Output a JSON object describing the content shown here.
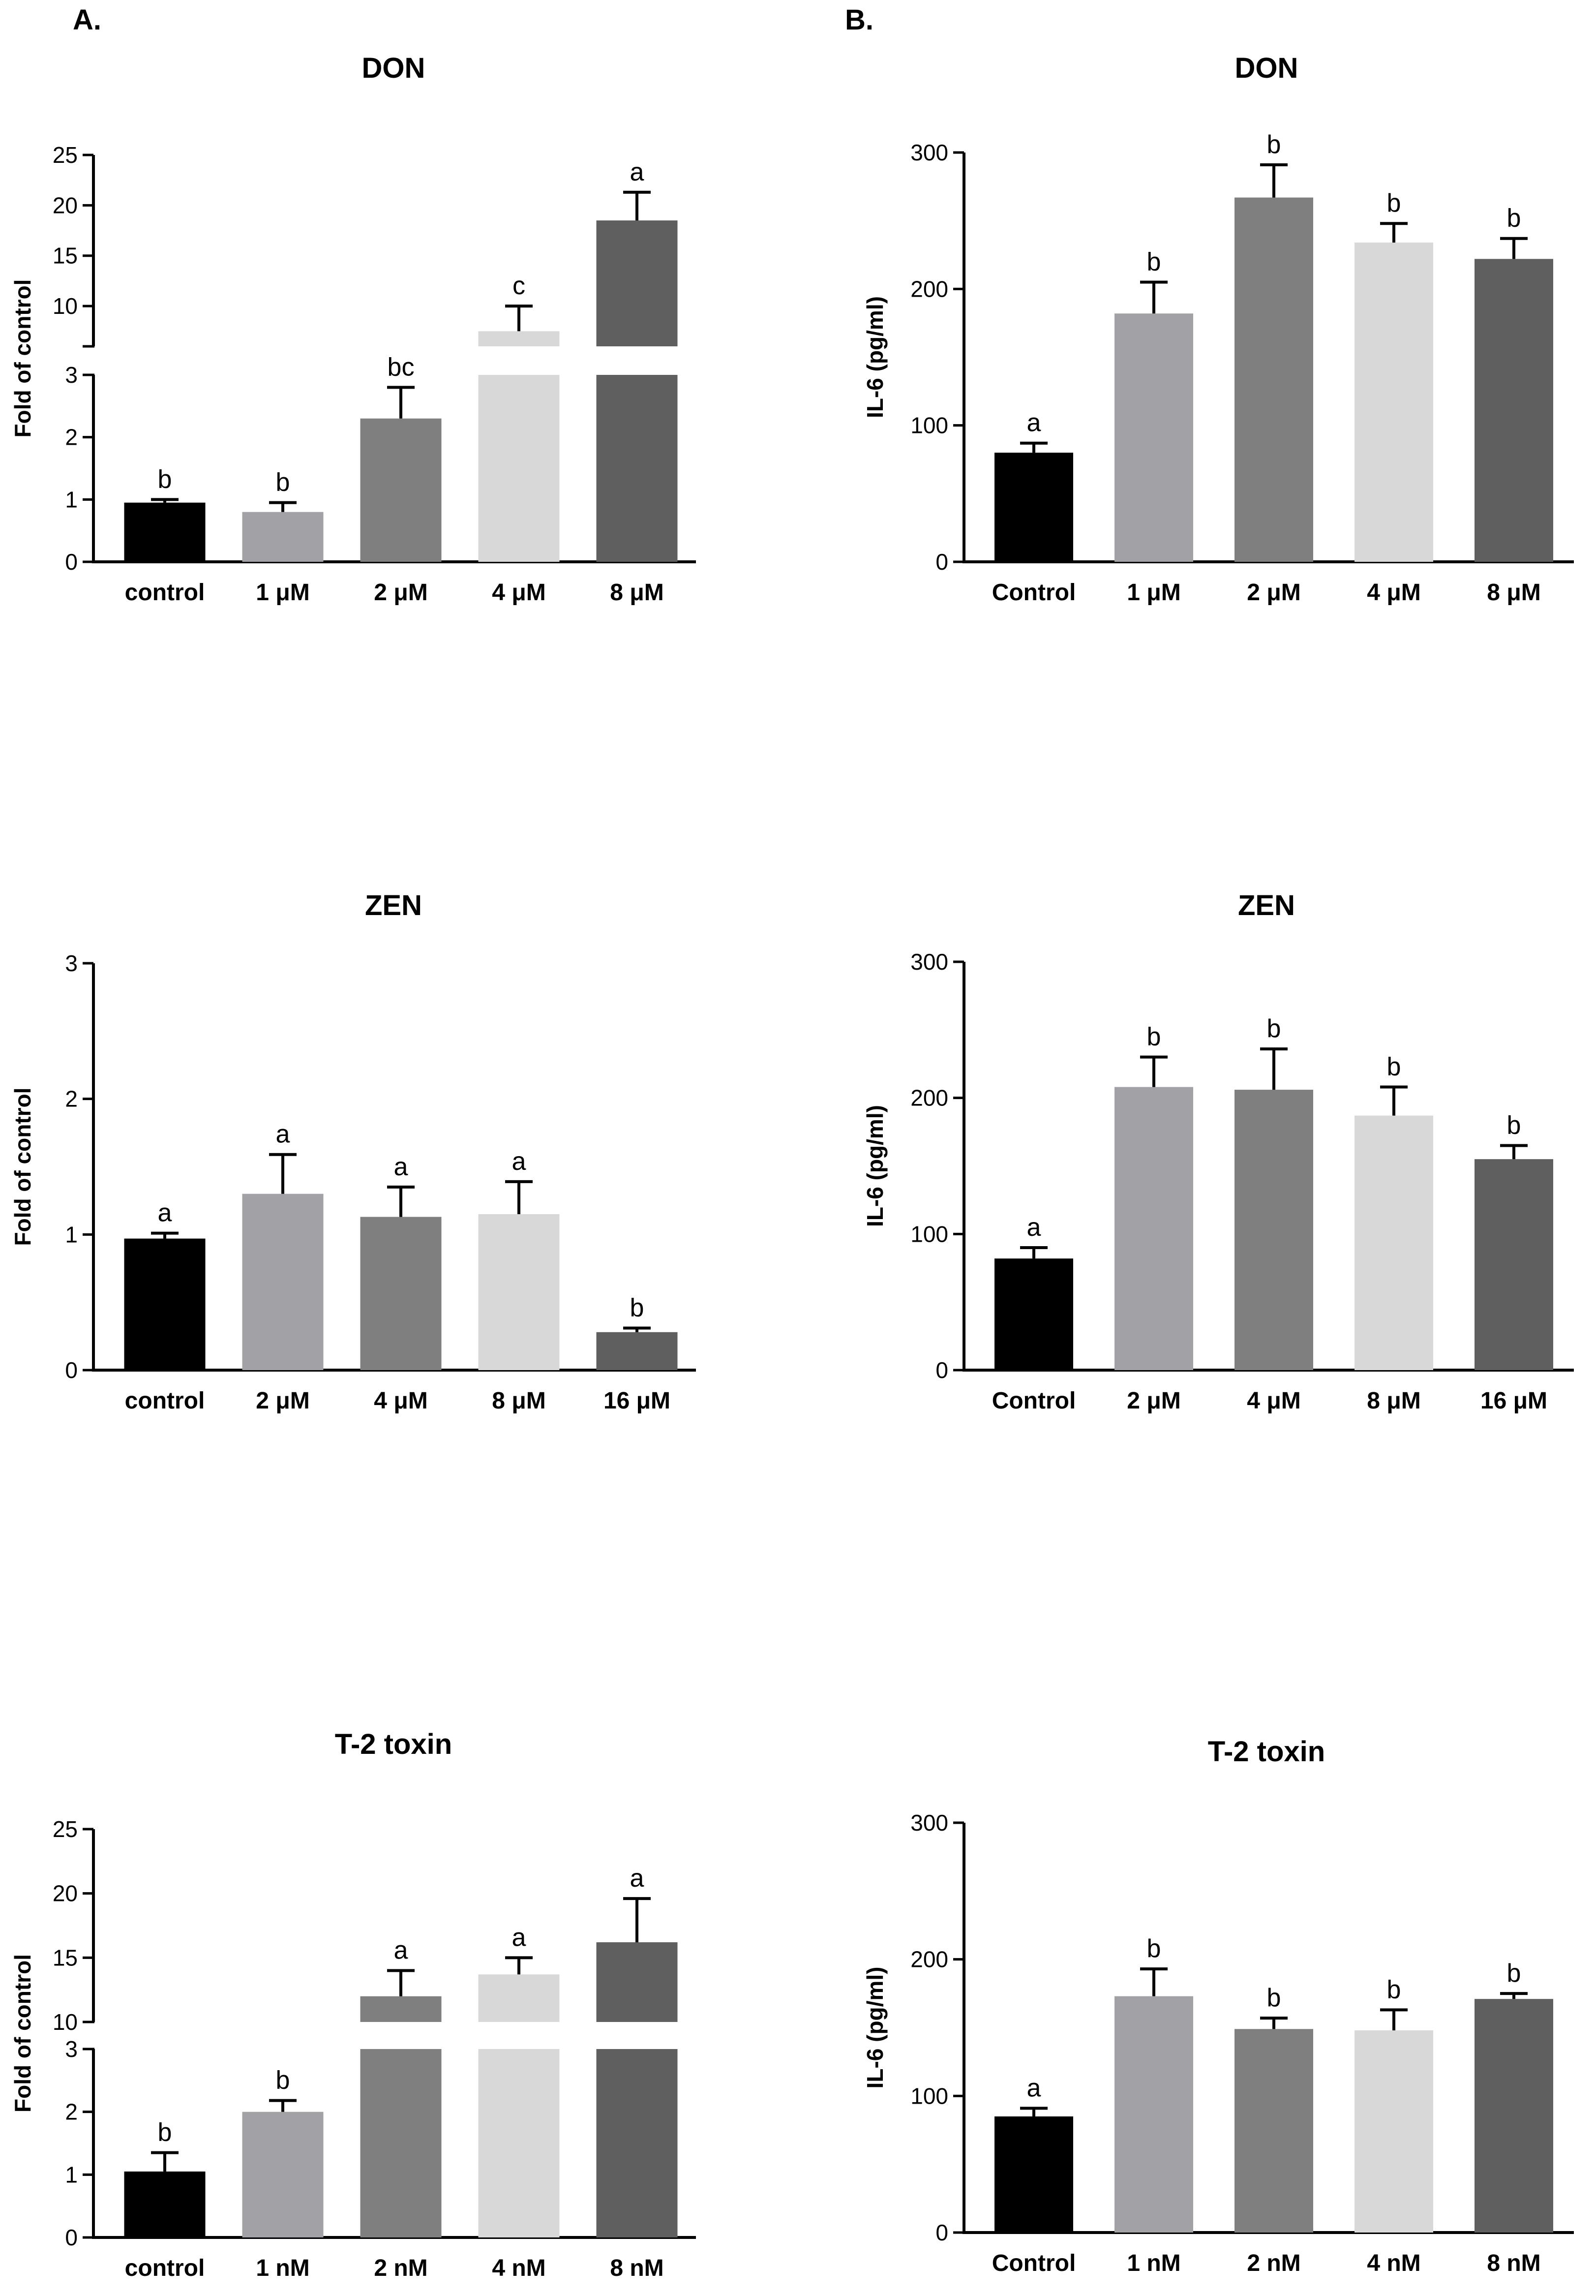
{
  "panels": {
    "a": {
      "label": "A."
    },
    "b": {
      "label": "B."
    }
  },
  "palette": [
    "#000000",
    "#a1a1a6",
    "#7f7f7f",
    "#d8d8d8",
    "#5f5f5f"
  ],
  "chart_data": [
    {
      "id": "don-fold",
      "panel": "A.",
      "type": "bar",
      "title": "DON",
      "xlabel": "",
      "ylabel": "Fold of control",
      "categories": [
        "control",
        "1 μM",
        "2 μM",
        "4 μM",
        "8 μM"
      ],
      "values": [
        0.95,
        0.8,
        2.3,
        7.5,
        18.5
      ],
      "errors": [
        0.05,
        0.15,
        0.5,
        2.5,
        2.8
      ],
      "significance": [
        "b",
        "b",
        "bc",
        "c",
        "a"
      ],
      "y_axis": {
        "broken": true,
        "lower": {
          "range": [
            0,
            3
          ],
          "ticks": [
            0,
            1,
            2,
            3
          ]
        },
        "upper": {
          "range": [
            6,
            25
          ],
          "ticks": [
            10,
            15,
            20,
            25
          ]
        }
      }
    },
    {
      "id": "don-il6",
      "panel": "B.",
      "type": "bar",
      "title": "DON",
      "xlabel": "",
      "ylabel": "IL-6 (pg/ml)",
      "categories": [
        "Control",
        "1 μM",
        "2 μM",
        "4 μM",
        "8 μM"
      ],
      "values": [
        80,
        182,
        267,
        234,
        222
      ],
      "errors": [
        7,
        23,
        24,
        14,
        15
      ],
      "significance": [
        "a",
        "b",
        "b",
        "b",
        "b"
      ],
      "ylim": [
        0,
        300
      ],
      "yticks": [
        0,
        100,
        200,
        300
      ]
    },
    {
      "id": "zen-fold",
      "panel": "A.",
      "type": "bar",
      "title": "ZEN",
      "xlabel": "",
      "ylabel": "Fold of control",
      "categories": [
        "control",
        "2 μM",
        "4 μM",
        "8 μM",
        "16 μM"
      ],
      "values": [
        0.97,
        1.3,
        1.13,
        1.15,
        0.28
      ],
      "errors": [
        0.04,
        0.29,
        0.22,
        0.24,
        0.03
      ],
      "significance": [
        "a",
        "a",
        "a",
        "a",
        "b"
      ],
      "ylim": [
        0,
        3
      ],
      "yticks": [
        0,
        1,
        2,
        3
      ]
    },
    {
      "id": "zen-il6",
      "panel": "B.",
      "type": "bar",
      "title": "ZEN",
      "xlabel": "",
      "ylabel": "IL-6 (pg/ml)",
      "categories": [
        "Control",
        "2 μM",
        "4 μM",
        "8 μM",
        "16 μM"
      ],
      "values": [
        82,
        208,
        206,
        187,
        155
      ],
      "errors": [
        8,
        22,
        30,
        21,
        10
      ],
      "significance": [
        "a",
        "b",
        "b",
        "b",
        "b"
      ],
      "ylim": [
        0,
        300
      ],
      "yticks": [
        0,
        100,
        200,
        300
      ]
    },
    {
      "id": "t2-fold",
      "panel": "A.",
      "type": "bar",
      "title": "T-2 toxin",
      "xlabel": "",
      "ylabel": "Fold of control",
      "categories": [
        "control",
        "1 nM",
        "2 nM",
        "4 nM",
        "8 nM"
      ],
      "values": [
        1.05,
        2.0,
        12.0,
        13.7,
        16.2
      ],
      "errors": [
        0.3,
        0.18,
        2.0,
        1.3,
        3.4
      ],
      "significance": [
        "b",
        "b",
        "a",
        "a",
        "a"
      ],
      "y_axis": {
        "broken": true,
        "lower": {
          "range": [
            0,
            3
          ],
          "ticks": [
            0,
            1,
            2,
            3
          ]
        },
        "upper": {
          "range": [
            10,
            25
          ],
          "ticks": [
            10,
            15,
            20,
            25
          ]
        }
      }
    },
    {
      "id": "t2-il6",
      "panel": "B.",
      "type": "bar",
      "title": "T-2 toxin",
      "xlabel": "",
      "ylabel": "IL-6 (pg/ml)",
      "categories": [
        "Control",
        "1 nM",
        "2 nM",
        "4 nM",
        "8 nM"
      ],
      "values": [
        85,
        173,
        149,
        148,
        171
      ],
      "errors": [
        6,
        20,
        8,
        15,
        4
      ],
      "significance": [
        "a",
        "b",
        "b",
        "b",
        "b"
      ],
      "ylim": [
        0,
        300
      ],
      "yticks": [
        0,
        100,
        200,
        300
      ]
    }
  ]
}
